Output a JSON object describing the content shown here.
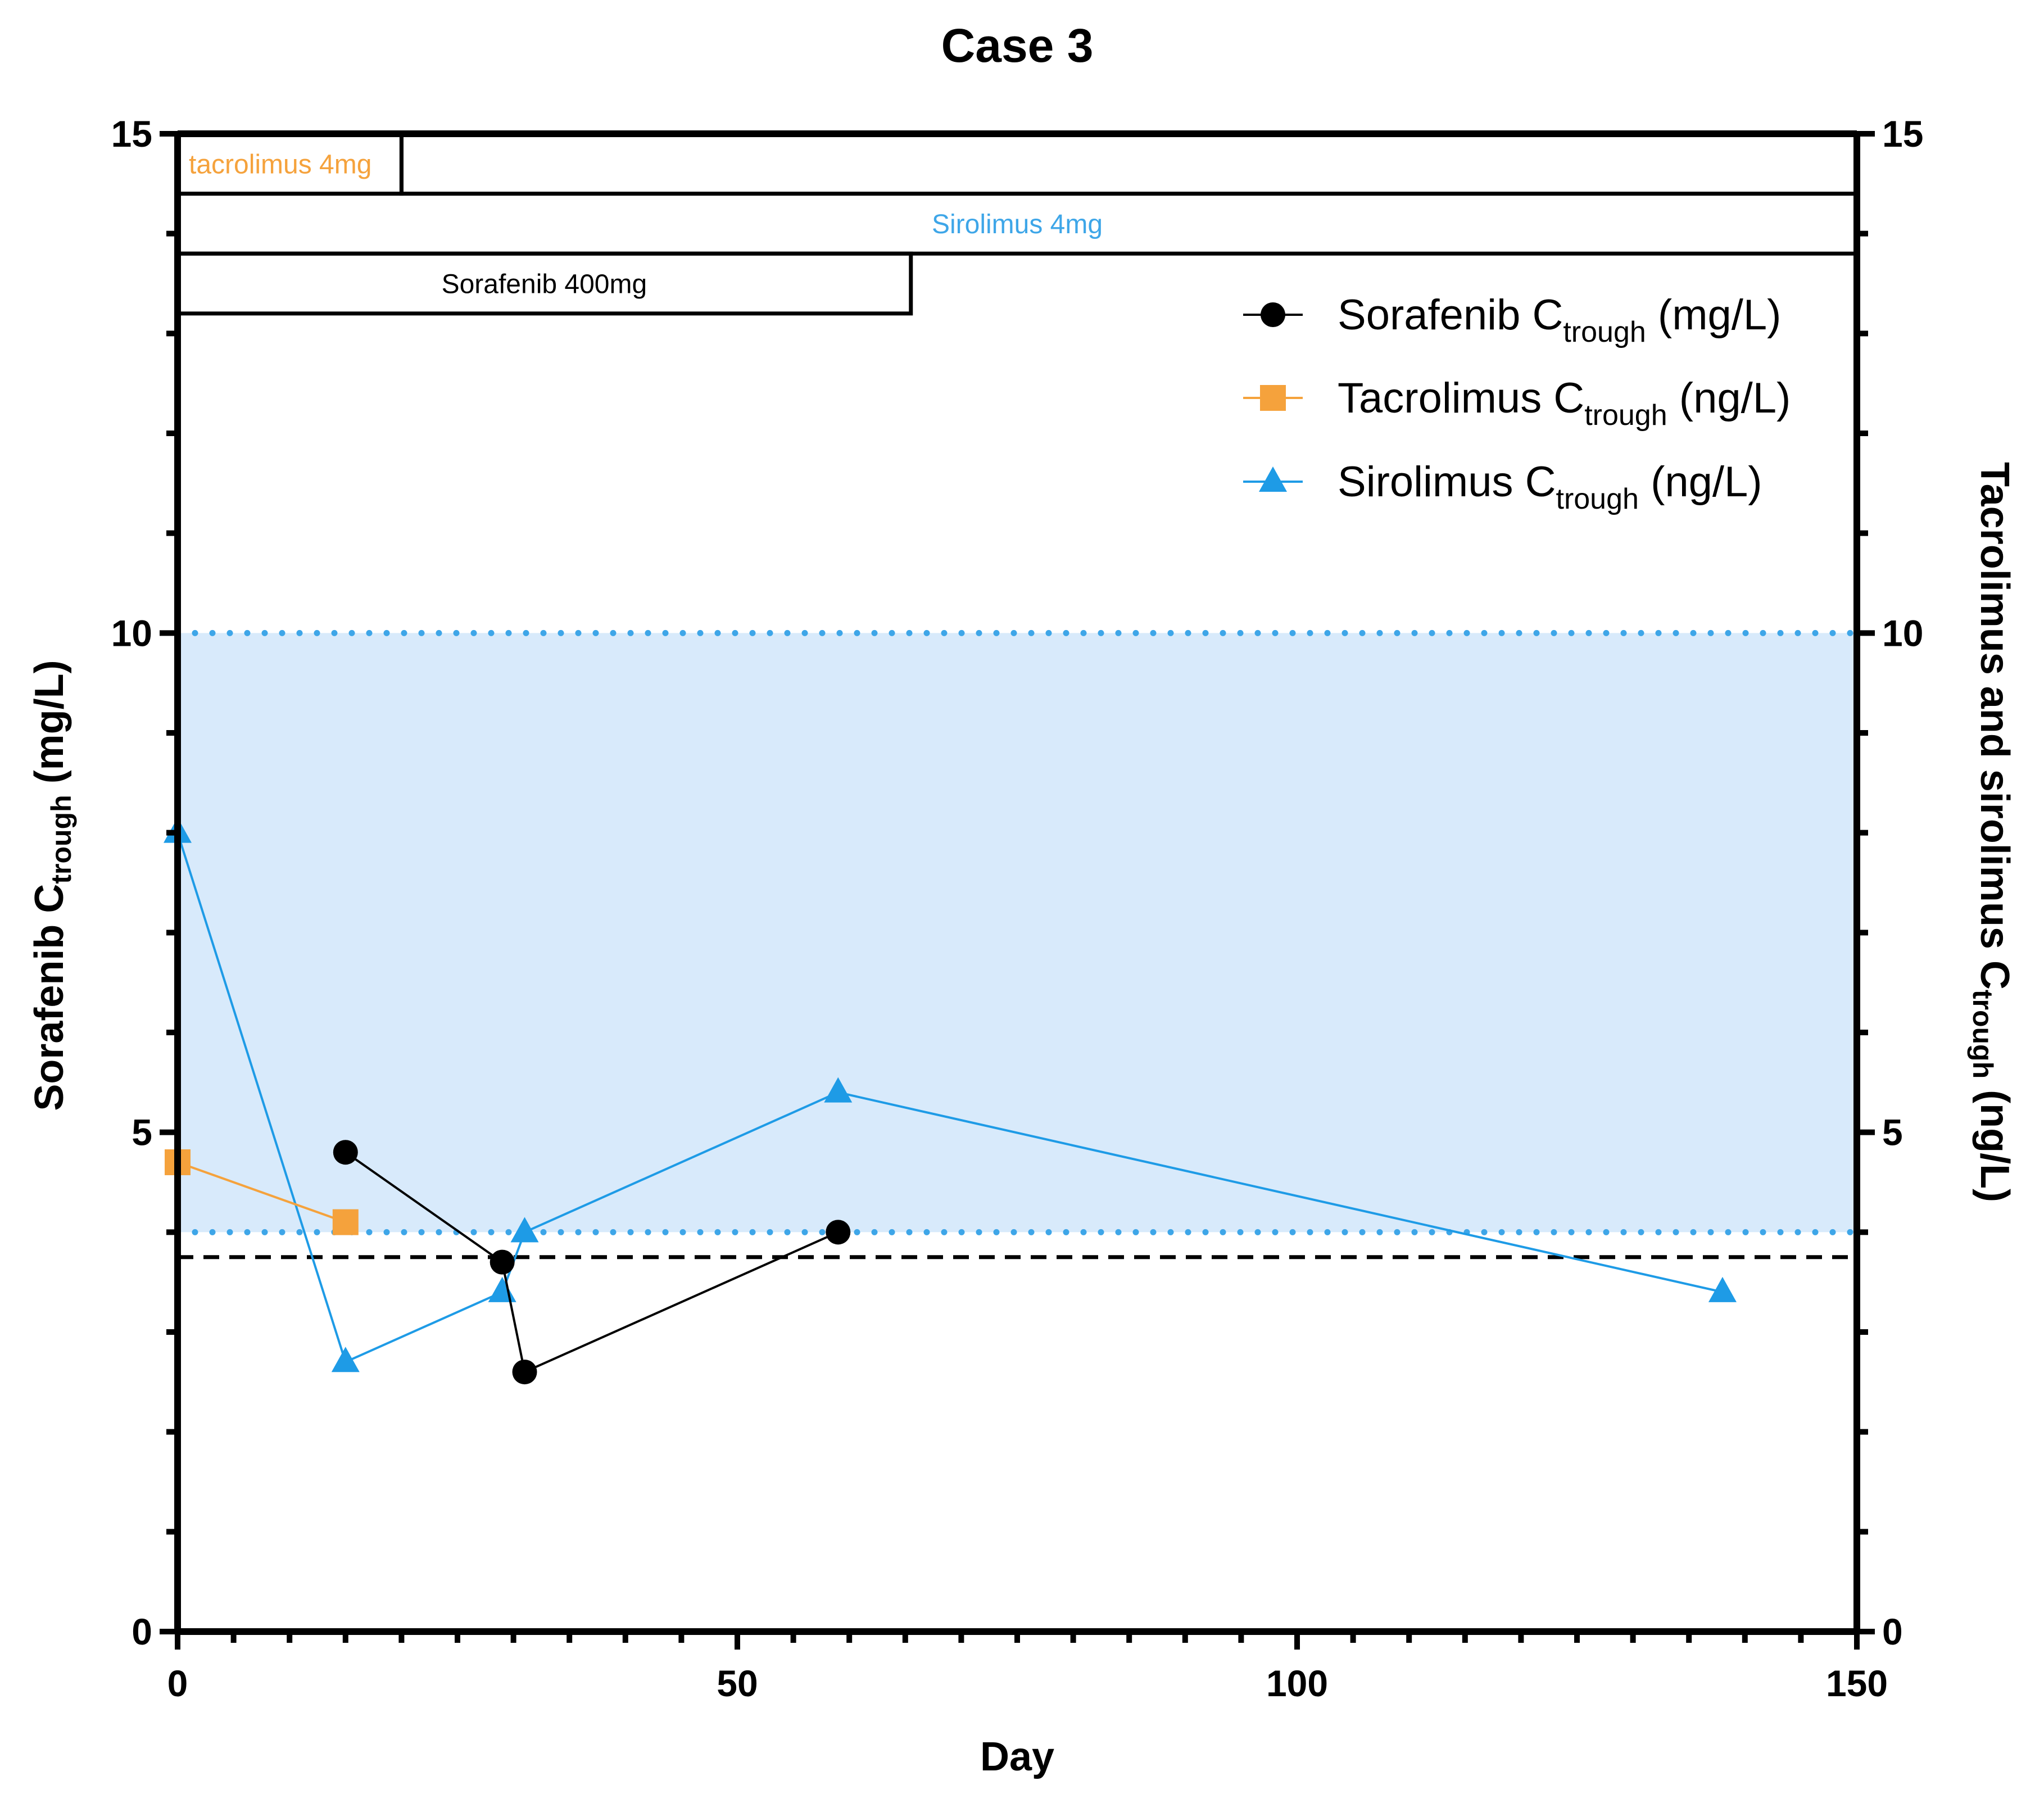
{
  "chart_data": {
    "type": "line",
    "title": "Case 3",
    "xlabel": "Day",
    "ylabel_left": {
      "main": "Sorafenib C",
      "sub": "trough",
      "tail": " (mg/L)"
    },
    "ylabel_right": {
      "main": "Tacrolimus and sirolimus C",
      "sub": "trough",
      "tail": " (ng/L)"
    },
    "xlim": [
      0,
      150
    ],
    "ylim": [
      0,
      15
    ],
    "x_ticks": [
      0,
      50,
      100,
      150
    ],
    "y_ticks_left": [
      0,
      5,
      10,
      15
    ],
    "y_ticks_right": [
      0,
      5,
      10,
      15
    ],
    "series": [
      {
        "name": {
          "main": "Sorafenib C",
          "sub": "trough",
          "tail": " (mg/L)"
        },
        "marker": "circle",
        "color": "#000000",
        "x": [
          15,
          29,
          31,
          59
        ],
        "y": [
          4.8,
          3.7,
          2.6,
          4.0
        ]
      },
      {
        "name": {
          "main": "Tacrolimus C",
          "sub": "trough",
          "tail": " (ng/L)"
        },
        "marker": "square",
        "color": "#f5a23c",
        "x": [
          0,
          15
        ],
        "y": [
          4.7,
          4.1
        ]
      },
      {
        "name": {
          "main": "Sirolimus C",
          "sub": "trough",
          "tail": " (ng/L)"
        },
        "marker": "triangle",
        "color": "#1e9be6",
        "x": [
          0,
          15,
          29,
          31,
          59,
          138
        ],
        "y": [
          8.0,
          2.7,
          3.4,
          4.0,
          5.4,
          3.4
        ]
      }
    ],
    "shaded_band": {
      "y_range": [
        4,
        10
      ],
      "color": "#d8eafb",
      "border_color": "#3ea6e8",
      "border_style": "dotted"
    },
    "reference_line": {
      "y": 3.75,
      "style": "dashed",
      "color": "#000000"
    },
    "dose_bars": [
      {
        "label": "tacrolimus 4mg",
        "x_range": [
          0,
          20
        ],
        "y_range": [
          14.4,
          15
        ],
        "text_color": "#f5a23c"
      },
      {
        "label": "",
        "x_range": [
          20,
          150
        ],
        "y_range": [
          14.4,
          15
        ],
        "text_color": "#000000"
      },
      {
        "label": "Sirolimus 4mg",
        "x_range": [
          0,
          150
        ],
        "y_range": [
          13.8,
          14.4
        ],
        "text_color": "#3ea6e8"
      },
      {
        "label": "Sorafenib 400mg",
        "x_range": [
          0,
          65.5
        ],
        "y_range": [
          13.2,
          13.8
        ],
        "text_color": "#000000"
      }
    ],
    "legend_position": "top-right",
    "grid": false
  }
}
